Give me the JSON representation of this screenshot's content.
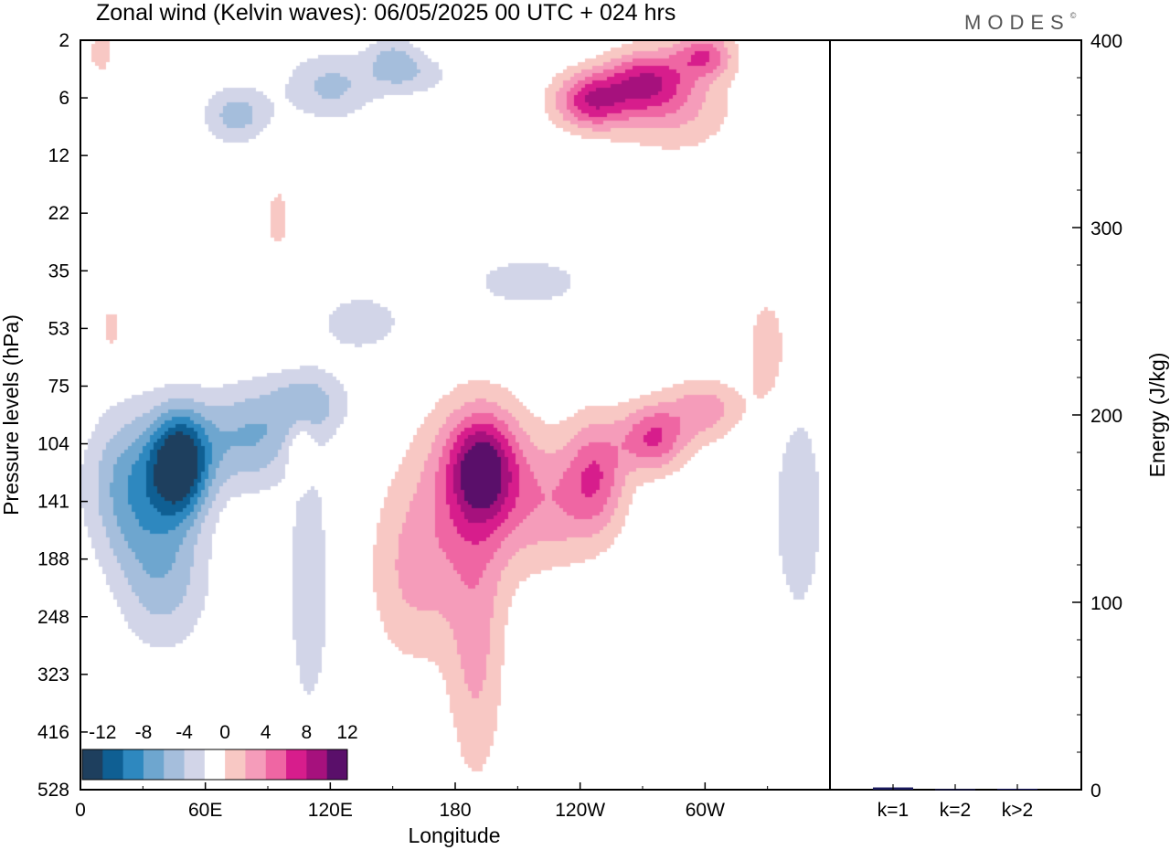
{
  "title": "Zonal wind (Kelvin waves):  06/05/2025  00 UTC  + 024 hrs",
  "logo": {
    "text": "MODES",
    "mark": "©"
  },
  "colors": {
    "neg": [
      "#1e3f5e",
      "#0f5f93",
      "#2e88bf",
      "#6ea6cf",
      "#a5bedc",
      "#d2d5e8"
    ],
    "pos": [
      "#f8c8c4",
      "#f59cba",
      "#ef66a3",
      "#d71d8c",
      "#a6117d",
      "#5a0f6a"
    ]
  },
  "chart_data": [
    {
      "type": "heatmap",
      "title": "Zonal wind (Kelvin waves):  06/05/2025  00 UTC  + 024 hrs",
      "xlabel": "Longitude",
      "ylabel": "Pressure levels (hPa)",
      "x_ticks": [
        "0",
        "60E",
        "120E",
        "180",
        "120W",
        "60W"
      ],
      "x_tick_values": [
        0,
        60,
        120,
        180,
        240,
        300
      ],
      "xlim": [
        0,
        360
      ],
      "y_ticks": [
        "2",
        "6",
        "12",
        "22",
        "35",
        "53",
        "75",
        "104",
        "141",
        "188",
        "248",
        "323",
        "416",
        "528"
      ],
      "y_scale": "pressure levels (top 2 hPa, bottom 528 hPa)",
      "colorbar": {
        "labels": [
          "-12",
          "-8",
          "-4",
          "0",
          "4",
          "8",
          "12"
        ],
        "levels": [
          -14,
          -12,
          -10,
          -8,
          -6,
          -4,
          -2,
          2,
          4,
          6,
          8,
          10,
          12,
          14
        ],
        "position": "bottom-left inside plot"
      },
      "grid": false,
      "features": [
        {
          "name": "easterly-low",
          "lon": 50,
          "level_index": 7.3,
          "min": -13
        },
        {
          "name": "easterly-upper",
          "lon": 75,
          "level_index": 1.3,
          "min": -5
        },
        {
          "name": "westerly-dateline",
          "lon": 195,
          "level_index": 7.4,
          "max": 9
        },
        {
          "name": "westerly-east-pacific",
          "lon": 275,
          "level_index": 7.0,
          "max": 9
        },
        {
          "name": "westerly-upper",
          "lon": 265,
          "level_index": 1.0,
          "max": 9
        }
      ]
    },
    {
      "type": "bar",
      "categories": [
        "k=1",
        "k=2",
        "k>2"
      ],
      "values": [
        1.2,
        0.3,
        0.5
      ],
      "ylabel": "Energy (J/kg)",
      "y_ticks": [
        "0",
        "100",
        "200",
        "300",
        "400"
      ],
      "ylim": [
        0,
        400
      ]
    }
  ]
}
